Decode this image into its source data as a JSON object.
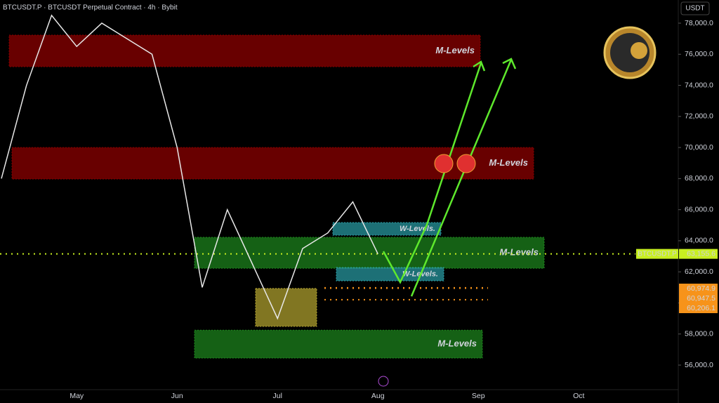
{
  "chart_data": {
    "type": "line",
    "title": "BTCUSDT.P · BTCUSDT Perpetual Contract · 4h · Bybit",
    "currency": "USDT",
    "categories": [
      null,
      null,
      null,
      "May",
      null,
      null,
      null,
      "Jun",
      null,
      null,
      null,
      "Jul",
      null,
      null,
      null,
      "Aug",
      null,
      null,
      null,
      "Sep",
      null,
      null,
      null,
      "Oct",
      null,
      null,
      null
    ],
    "values": [
      68000,
      74000,
      78500,
      76500,
      78000,
      77000,
      76000,
      70000,
      61000,
      66000,
      62500,
      59000,
      63500,
      64500,
      66500,
      63150,
      null,
      null,
      null,
      null,
      null,
      null,
      null,
      null,
      null,
      null,
      null
    ],
    "color": "#e8e8e8",
    "ylim": [
      54420,
      79490
    ],
    "yticks": [
      {
        "value": 56000,
        "label": "56,000.0"
      },
      {
        "value": 58000,
        "label": "58,000.0"
      },
      {
        "value": 60000,
        "label": "60,000.0"
      },
      {
        "value": 62000,
        "label": "62,000.0"
      },
      {
        "value": 64000,
        "label": "64,000.0"
      },
      {
        "value": 66000,
        "label": "66,000.0"
      },
      {
        "value": 68000,
        "label": "68,000.0"
      },
      {
        "value": 70000,
        "label": "70,000.0"
      },
      {
        "value": 72000,
        "label": "72,000.0"
      },
      {
        "value": 74000,
        "label": "74,000.0"
      },
      {
        "value": 76000,
        "label": "76,000.0"
      },
      {
        "value": 78000,
        "label": "78,000.0"
      }
    ],
    "zones": [
      {
        "label": "M-Levels",
        "from": 75200,
        "to": 77230,
        "color": "#8b0000"
      },
      {
        "label": "M-Levels",
        "from": 67970,
        "to": 70000,
        "color": "#8b0000"
      },
      {
        "label": "M-Levels",
        "from": 62230,
        "to": 64220,
        "color": "#1e8a1e"
      },
      {
        "label": "M-Levels",
        "from": 56450,
        "to": 58250,
        "color": "#1e8a1e"
      },
      {
        "label": "W-Levels.",
        "from": 64360,
        "to": 65170,
        "color": "#2a9fa8"
      },
      {
        "label": "W-Levels.",
        "from": 61420,
        "to": 62280,
        "color": "#2a9fa8"
      },
      {
        "from": 58490,
        "to": 60930,
        "color": "#b8a830"
      }
    ],
    "price_labels": [
      {
        "name": "BTCUSDT.P",
        "value": 63155.6,
        "label": "63,155.6",
        "color": "#c8f020"
      },
      {
        "value": 60974.9,
        "label": "60,974.9",
        "color": "#f7931a"
      },
      {
        "value": 60947.5,
        "label": "60,947.5",
        "color": "#f7931a"
      },
      {
        "value": 60206.1,
        "label": "60,206.1",
        "color": "#f7931a"
      }
    ]
  }
}
